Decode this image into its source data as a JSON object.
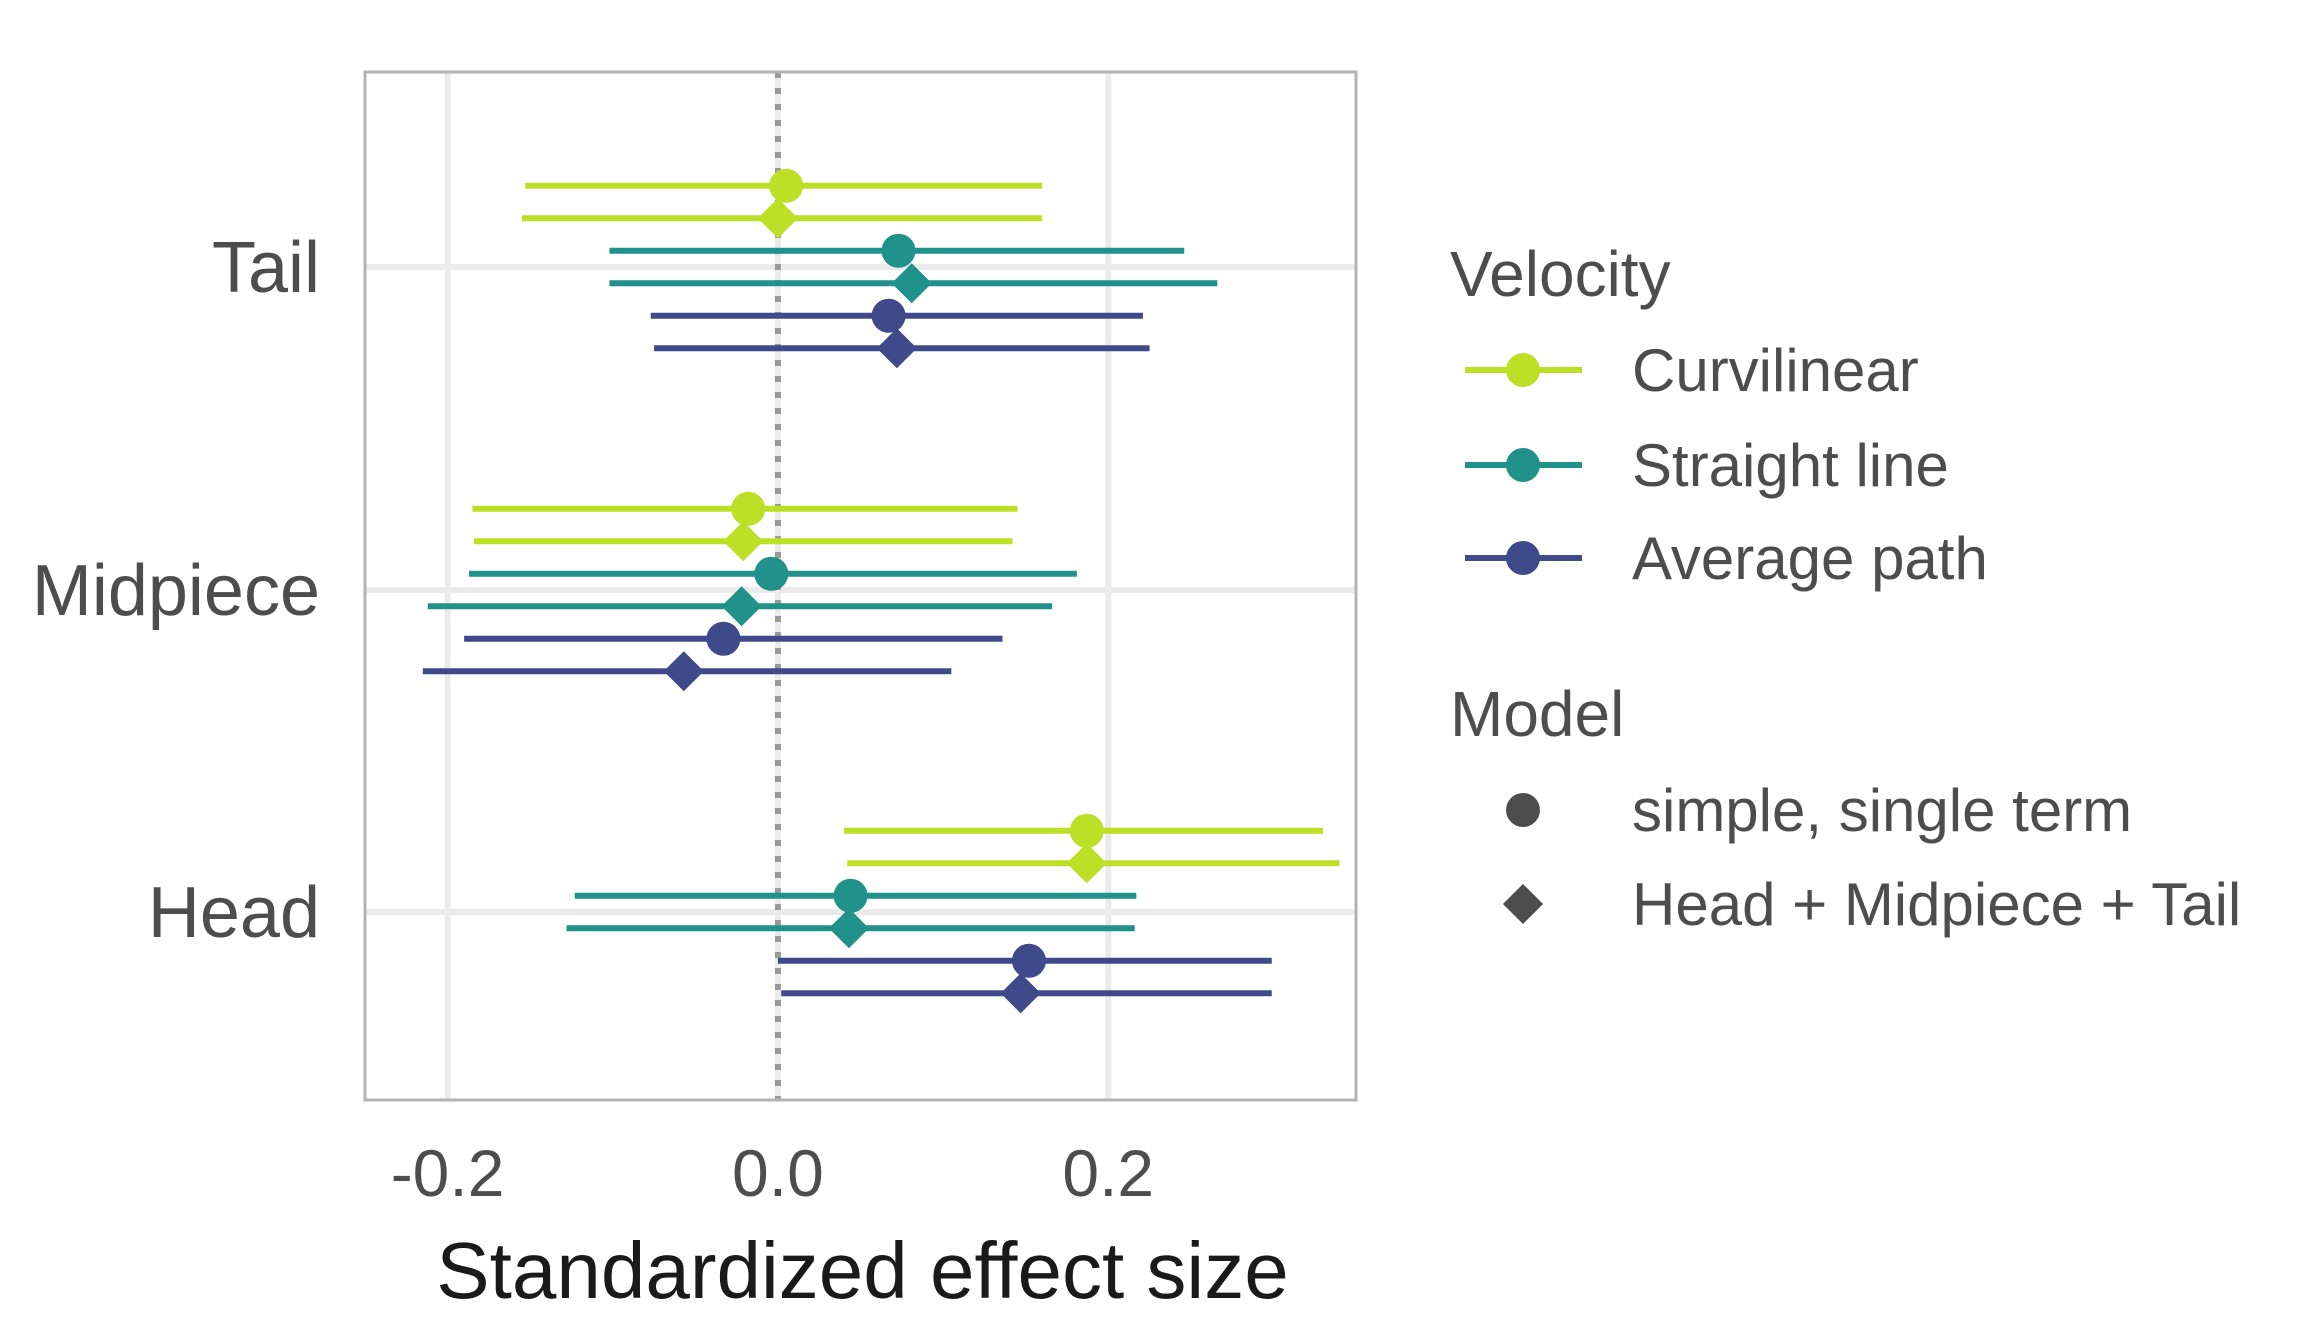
{
  "chart_data": {
    "type": "scatter",
    "subtype": "forest-plot-with-error-bars",
    "title": "",
    "xlabel": "Standardized effect size",
    "ylabel": "",
    "xlim": [
      -0.25,
      0.35
    ],
    "x_ticks": [
      -0.2,
      0.0,
      0.2
    ],
    "x_tick_labels": [
      "-0.2",
      "0.0",
      "0.2"
    ],
    "reference_line": {
      "x": 0.0,
      "style": "dotted",
      "color": "#999999"
    },
    "grid": true,
    "categories": [
      "Tail",
      "Midpiece",
      "Head"
    ],
    "legend_position": "right",
    "legend": {
      "velocity_title": "Velocity",
      "velocity_items": [
        {
          "label": "Curvilinear",
          "color": "#bddf26"
        },
        {
          "label": "Straight line",
          "color": "#21918c"
        },
        {
          "label": "Average path",
          "color": "#3e4a89"
        }
      ],
      "model_title": "Model",
      "model_items": [
        {
          "label": "simple, single term",
          "shape": "circle"
        },
        {
          "label": "Head + Midpiece + Tail",
          "shape": "diamond"
        }
      ]
    },
    "series": [
      {
        "category": "Tail",
        "points": [
          {
            "velocity": 0,
            "model": 0,
            "estimate": 0.005,
            "lower": -0.153,
            "upper": 0.16
          },
          {
            "velocity": 0,
            "model": 1,
            "estimate": 0.0,
            "lower": -0.155,
            "upper": 0.16
          },
          {
            "velocity": 1,
            "model": 0,
            "estimate": 0.073,
            "lower": -0.102,
            "upper": 0.246
          },
          {
            "velocity": 1,
            "model": 1,
            "estimate": 0.081,
            "lower": -0.102,
            "upper": 0.266
          },
          {
            "velocity": 2,
            "model": 0,
            "estimate": 0.067,
            "lower": -0.077,
            "upper": 0.221
          },
          {
            "velocity": 2,
            "model": 1,
            "estimate": 0.072,
            "lower": -0.075,
            "upper": 0.225
          }
        ]
      },
      {
        "category": "Midpiece",
        "points": [
          {
            "velocity": 0,
            "model": 0,
            "estimate": -0.018,
            "lower": -0.185,
            "upper": 0.145
          },
          {
            "velocity": 0,
            "model": 1,
            "estimate": -0.021,
            "lower": -0.184,
            "upper": 0.142
          },
          {
            "velocity": 1,
            "model": 0,
            "estimate": -0.004,
            "lower": -0.187,
            "upper": 0.181
          },
          {
            "velocity": 1,
            "model": 1,
            "estimate": -0.022,
            "lower": -0.212,
            "upper": 0.166
          },
          {
            "velocity": 2,
            "model": 0,
            "estimate": -0.033,
            "lower": -0.19,
            "upper": 0.136
          },
          {
            "velocity": 2,
            "model": 1,
            "estimate": -0.057,
            "lower": -0.215,
            "upper": 0.105
          }
        ]
      },
      {
        "category": "Head",
        "points": [
          {
            "velocity": 0,
            "model": 0,
            "estimate": 0.187,
            "lower": 0.04,
            "upper": 0.33
          },
          {
            "velocity": 0,
            "model": 1,
            "estimate": 0.187,
            "lower": 0.042,
            "upper": 0.34
          },
          {
            "velocity": 1,
            "model": 0,
            "estimate": 0.044,
            "lower": -0.123,
            "upper": 0.217
          },
          {
            "velocity": 1,
            "model": 1,
            "estimate": 0.043,
            "lower": -0.128,
            "upper": 0.216
          },
          {
            "velocity": 2,
            "model": 0,
            "estimate": 0.152,
            "lower": 0.0,
            "upper": 0.299
          },
          {
            "velocity": 2,
            "model": 1,
            "estimate": 0.147,
            "lower": 0.002,
            "upper": 0.299
          }
        ]
      }
    ]
  }
}
